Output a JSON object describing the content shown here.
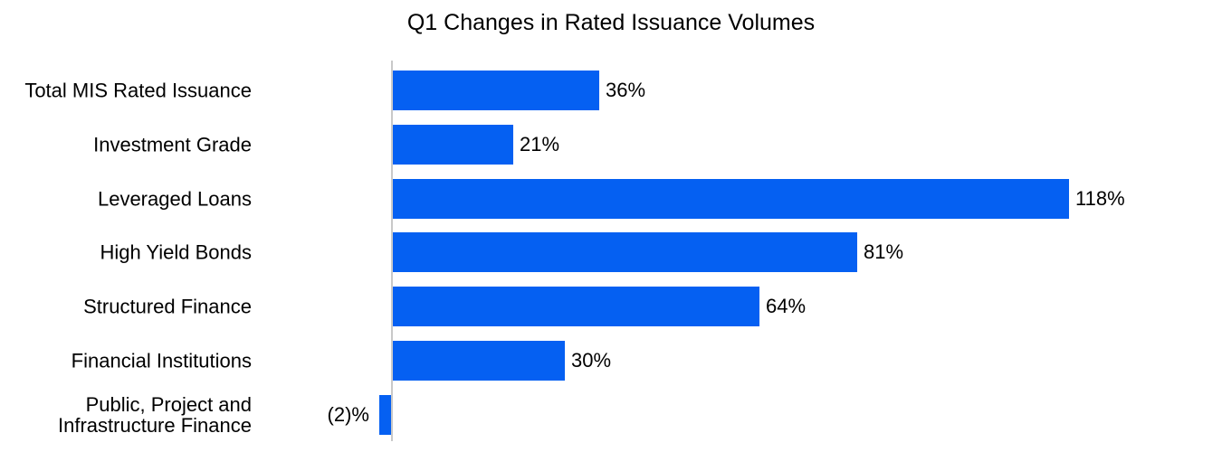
{
  "page": {
    "background": "#FFFFFF"
  },
  "chart_data": {
    "type": "bar",
    "orientation": "horizontal",
    "title": "Q1 Changes in Rated Issuance Volumes",
    "categories": [
      "Total MIS Rated Issuance",
      "Investment Grade",
      "Leveraged Loans",
      "High Yield Bonds",
      "Structured Finance",
      "Financial Institutions",
      "Public, Project and\nInfrastructure Finance"
    ],
    "values": [
      36,
      21,
      118,
      81,
      64,
      30,
      -2
    ],
    "value_labels": [
      "36%",
      "21%",
      "118%",
      "81%",
      "64%",
      "30%",
      "(2)%"
    ],
    "xlabel": "",
    "ylabel": "",
    "xlim": [
      -25,
      145
    ],
    "grid": false,
    "legend": false,
    "negative_format": "parentheses",
    "bar_color": "#0560F2",
    "axis_color": "#C9C9C9",
    "text_color": "#000000"
  }
}
